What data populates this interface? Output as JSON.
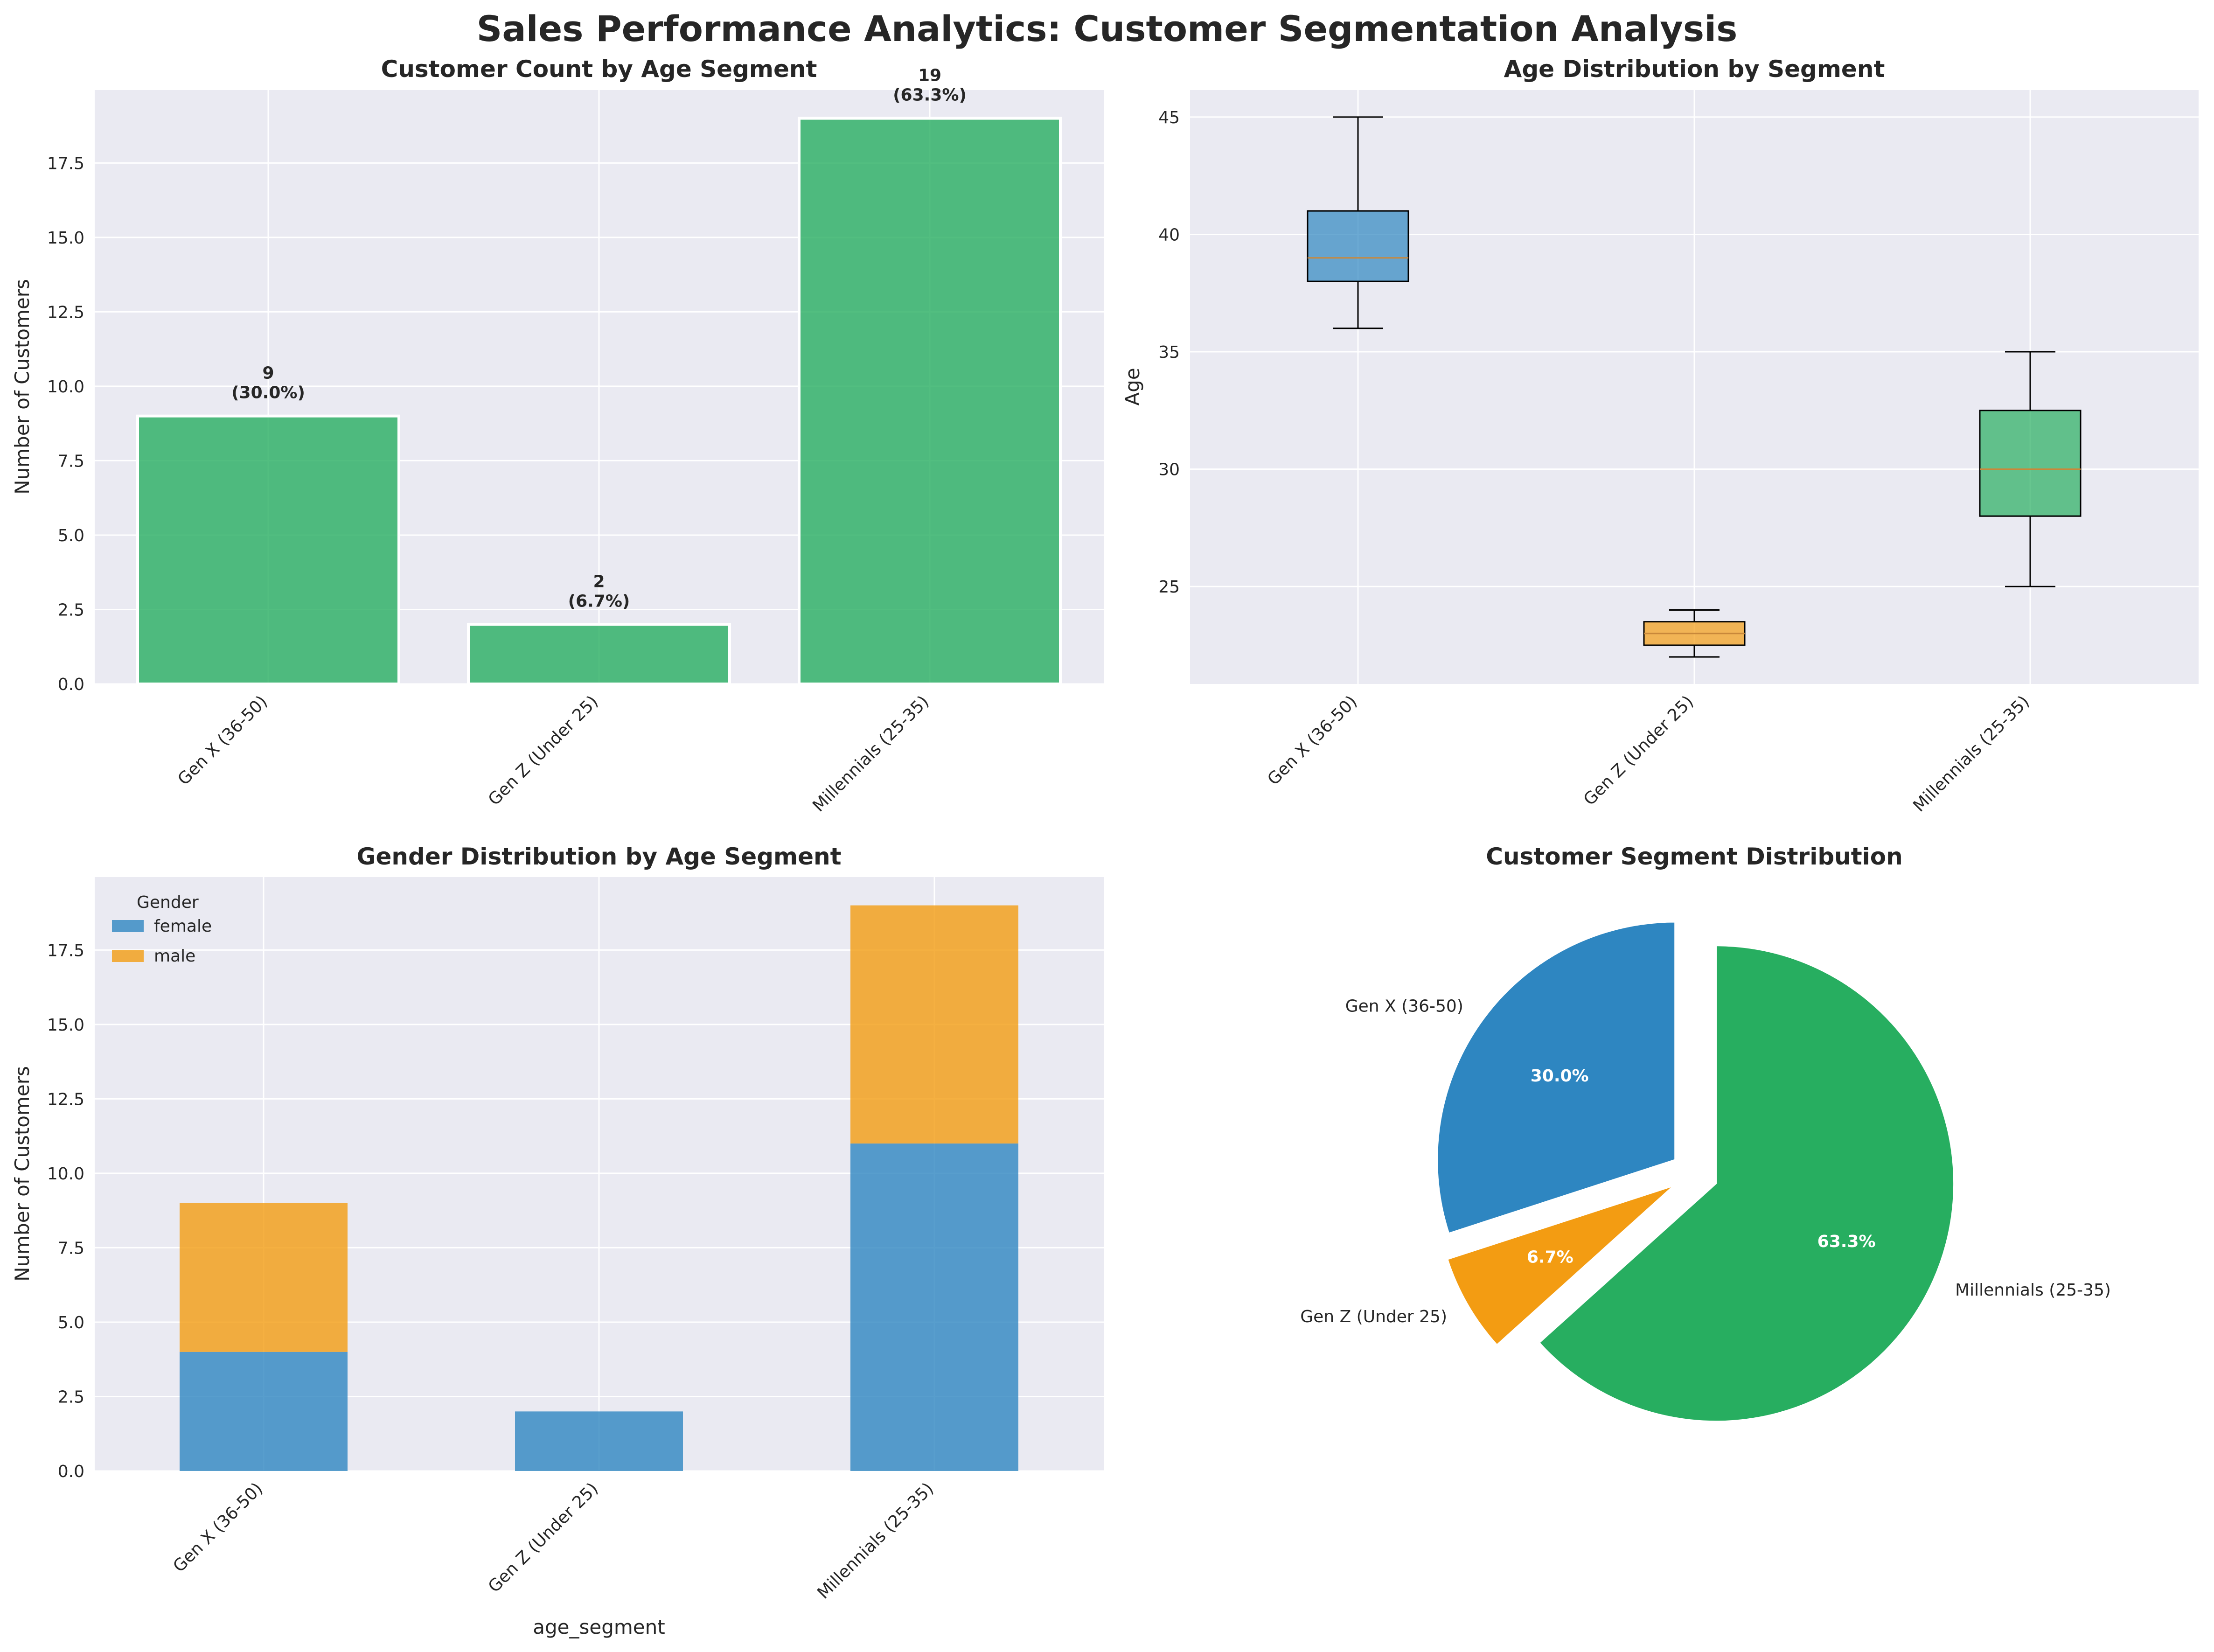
{
  "suptitle": "Sales Performance Analytics: Customer Segmentation Analysis",
  "colors": {
    "panel_bg": "#EAEAF2",
    "grid": "#FFFFFF",
    "green": "#27AE60",
    "blue": "#2E86C1",
    "orange": "#F39C12",
    "median": "#C8883A"
  },
  "chart_data": [
    {
      "type": "bar",
      "title": "Customer Count by Age Segment",
      "xlabel": "",
      "ylabel": "Number of Customers",
      "categories": [
        "Gen X (36-50)",
        "Gen Z (Under 25)",
        "Millennials (25-35)"
      ],
      "values": [
        9,
        2,
        19
      ],
      "data_labels": [
        "9",
        "2",
        "19"
      ],
      "pct_labels": [
        "(30.0%)",
        "(6.7%)",
        "(63.3%)"
      ],
      "ylim": [
        0,
        19.95
      ],
      "yticks": [
        "0.0",
        "2.5",
        "5.0",
        "7.5",
        "10.0",
        "12.5",
        "15.0",
        "17.5"
      ],
      "grid": true
    },
    {
      "type": "box",
      "title": "Age Distribution by Segment",
      "xlabel": "",
      "ylabel": "Age",
      "categories": [
        "Gen X (36-50)",
        "Gen Z (Under 25)",
        "Millennials (25-35)"
      ],
      "boxes": [
        {
          "min": 36,
          "q1": 38,
          "median": 39,
          "q3": 41,
          "max": 45
        },
        {
          "min": 22,
          "q1": 22.5,
          "median": 23,
          "q3": 23.5,
          "max": 24
        },
        {
          "min": 25,
          "q1": 28,
          "median": 30,
          "q3": 32.5,
          "max": 35
        }
      ],
      "ylim": [
        20.85,
        46.15
      ],
      "yticks": [
        "25",
        "30",
        "35",
        "40",
        "45"
      ],
      "grid": true
    },
    {
      "type": "bar",
      "stacked": true,
      "title": "Gender Distribution by Age Segment",
      "xlabel": "age_segment",
      "ylabel": "Number of Customers",
      "categories": [
        "Gen X (36-50)",
        "Gen Z (Under 25)",
        "Millennials (25-35)"
      ],
      "series": [
        {
          "name": "female",
          "values": [
            4,
            2,
            11
          ]
        },
        {
          "name": "male",
          "values": [
            5,
            0,
            8
          ]
        }
      ],
      "legend_title": "Gender",
      "legend_position": "upper-left",
      "ylim": [
        0,
        19.95
      ],
      "yticks": [
        "0.0",
        "2.5",
        "5.0",
        "7.5",
        "10.0",
        "12.5",
        "15.0",
        "17.5"
      ],
      "grid": true
    },
    {
      "type": "pie",
      "title": "Customer Segment Distribution",
      "labels": [
        "Gen X (36-50)",
        "Gen Z (Under 25)",
        "Millennials (25-35)"
      ],
      "values": [
        9,
        2,
        19
      ],
      "pct_labels": [
        "30.0%",
        "6.7%",
        "63.3%"
      ],
      "start_angle_deg": 90,
      "exploded": true
    }
  ]
}
